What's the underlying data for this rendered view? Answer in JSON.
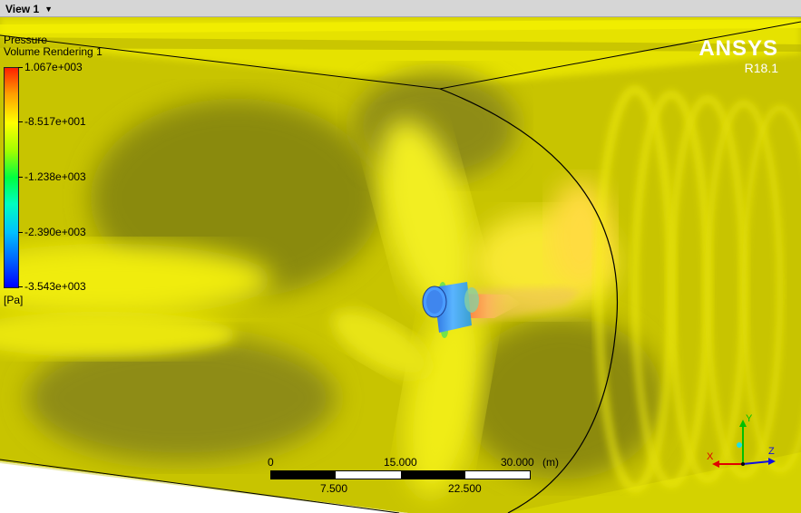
{
  "view": {
    "tab_label": "View 1",
    "tab_icon": "chevron-down-icon"
  },
  "legend": {
    "variable": "Pressure",
    "rendering": "Volume Rendering 1",
    "values": [
      "1.067e+003",
      "-8.517e+001",
      "-1.238e+003",
      "-2.390e+003",
      "-3.543e+003"
    ],
    "unit": "[Pa]"
  },
  "logo": {
    "name": "ANSYS",
    "version": "R18.1"
  },
  "scale": {
    "top_labels": [
      "0",
      "15.000",
      "30.000"
    ],
    "bottom_labels": [
      "7.500",
      "22.500"
    ],
    "unit": "(m)"
  },
  "triad": {
    "x": "X",
    "y": "Y",
    "z": "Z"
  },
  "colors": {
    "field": "#d8d800",
    "background": "#ffffff",
    "tab_bar": "#d6d6d6",
    "hub": "#3a8cff"
  }
}
